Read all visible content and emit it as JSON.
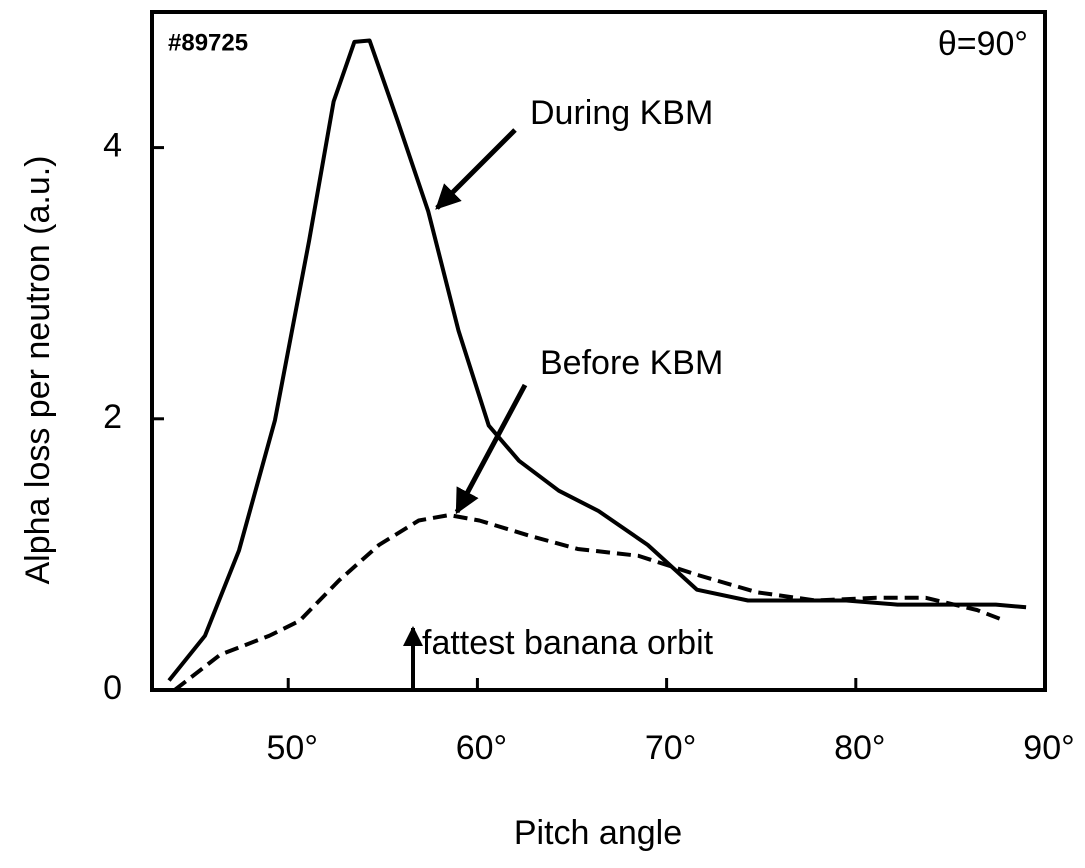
{
  "chart_data": {
    "type": "line",
    "x_label": "Pitch angle",
    "y_label": "Alpha loss per neutron (a.u.)",
    "annotations": [
      "#89725",
      "θ=90°",
      "During KBM",
      "Before KBM",
      "fattest banana orbit"
    ],
    "xlim": [
      42.8,
      90
    ],
    "ylim": [
      0,
      5
    ],
    "xticks": [
      {
        "value": 50,
        "label": "50°"
      },
      {
        "value": 60,
        "label": "60°"
      },
      {
        "value": 70,
        "label": "70°"
      },
      {
        "value": 80,
        "label": "80°"
      },
      {
        "value": 90,
        "label": "90°"
      }
    ],
    "yticks": [
      0,
      2,
      4
    ],
    "series": [
      {
        "name": "During KBM",
        "color": "#000000",
        "dash": false,
        "x": [
          43.7,
          45.6,
          47.4,
          49.3,
          51.1,
          52.4,
          53.5,
          54.3,
          55.8,
          57.4,
          59.0,
          60.6,
          62.2,
          64.3,
          66.4,
          69.0,
          71.6,
          74.3,
          76.9,
          79.5,
          82.2,
          85.3,
          87.4,
          89.0
        ],
        "values": [
          0.07,
          0.4,
          1.03,
          1.99,
          3.31,
          4.34,
          4.78,
          4.79,
          4.19,
          3.53,
          2.65,
          1.95,
          1.69,
          1.47,
          1.32,
          1.07,
          0.74,
          0.66,
          0.66,
          0.66,
          0.63,
          0.63,
          0.63,
          0.61
        ]
      },
      {
        "name": "Before KBM",
        "color": "#000000",
        "dash": true,
        "x": [
          44.0,
          46.4,
          49.0,
          50.6,
          52.7,
          54.8,
          56.9,
          58.5,
          60.1,
          62.7,
          65.3,
          68.5,
          71.6,
          74.8,
          77.9,
          81.1,
          83.7,
          86.4,
          87.9
        ],
        "values": [
          0,
          0.26,
          0.4,
          0.51,
          0.81,
          1.07,
          1.25,
          1.29,
          1.25,
          1.14,
          1.04,
          0.99,
          0.85,
          0.72,
          0.66,
          0.68,
          0.68,
          0.59,
          0.51
        ]
      }
    ]
  }
}
